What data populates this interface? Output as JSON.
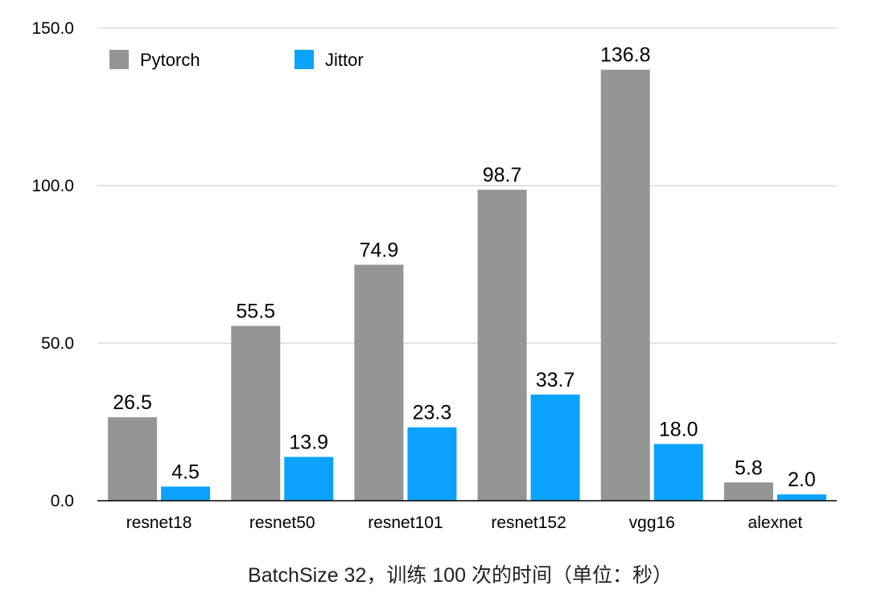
{
  "chart_data": {
    "type": "bar",
    "categories": [
      "resnet18",
      "resnet50",
      "resnet101",
      "resnet152",
      "vgg16",
      "alexnet"
    ],
    "series": [
      {
        "name": "Pytorch",
        "color": "#959595",
        "values": [
          26.5,
          55.5,
          74.9,
          98.7,
          136.8,
          5.8
        ],
        "labels": [
          "26.5",
          "55.5",
          "74.9",
          "98.7",
          "136.8",
          "5.8"
        ]
      },
      {
        "name": "Jittor",
        "color": "#0aa2fb",
        "values": [
          4.5,
          13.9,
          23.3,
          33.7,
          18.0,
          2.0
        ],
        "labels": [
          "4.5",
          "13.9",
          "23.3",
          "33.7",
          "18.0",
          "2.0"
        ]
      }
    ],
    "ylim": [
      0,
      150
    ],
    "yticks": [
      0,
      50,
      100,
      150
    ],
    "ytick_labels": [
      "0.0",
      "50.0",
      "100.0",
      "150.0"
    ],
    "xlabel": "BatchSize 32，训练 100 次的时间（单位：秒）",
    "ylabel": "",
    "title": "",
    "grid": true,
    "legend_position": "top-left"
  }
}
